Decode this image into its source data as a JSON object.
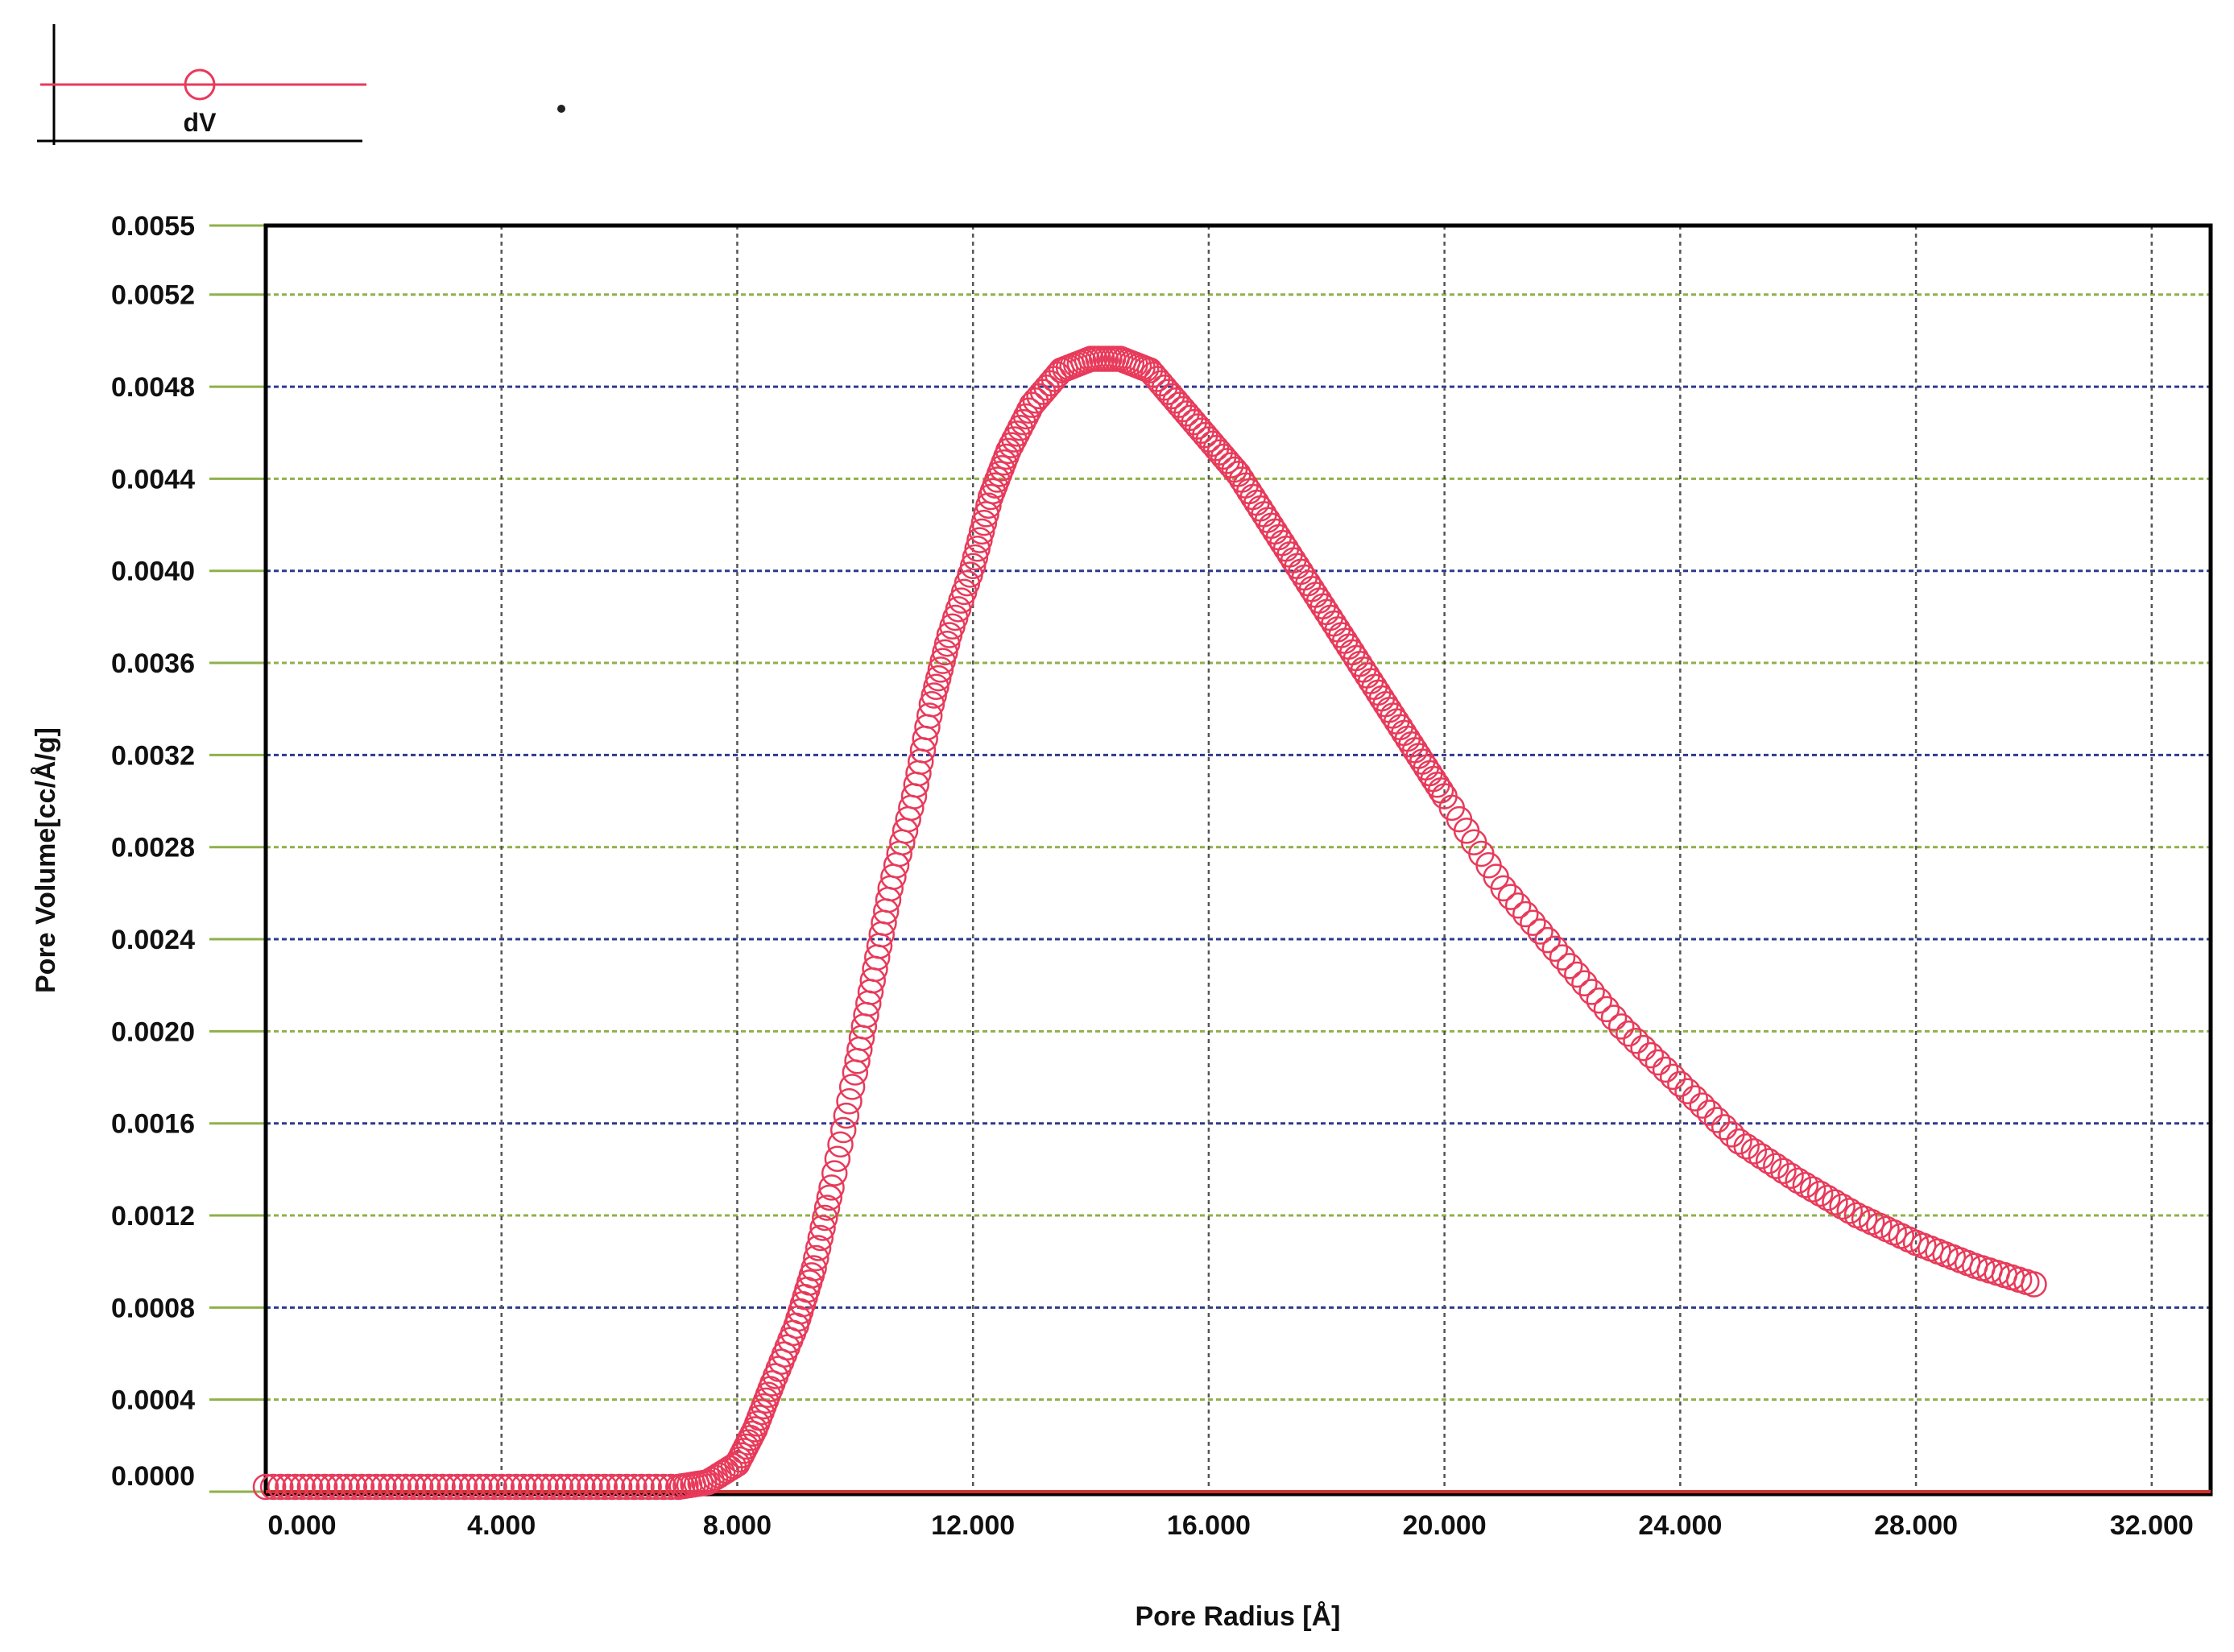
{
  "legend": {
    "series_label": "dV"
  },
  "colors": {
    "marker": "#e83a5a",
    "grid_h": "#2d3a8c",
    "grid_h_alt": "#8fb04a",
    "grid_v": "#555555",
    "frame": "#000000",
    "baseline": "#d0302c"
  },
  "chart_data": {
    "type": "scatter",
    "xlabel": "Pore Radius [Å]",
    "ylabel": "Pore Volume[cc/Å/g]",
    "xlim": [
      0,
      33
    ],
    "ylim": [
      0,
      0.0055
    ],
    "x_ticks": [
      "0.000",
      "4.000",
      "8.000",
      "12.000",
      "16.000",
      "20.000",
      "24.000",
      "28.000",
      "32.000"
    ],
    "y_ticks": [
      "0.0055",
      "0.0052",
      "0.0048",
      "0.0044",
      "0.0040",
      "0.0036",
      "0.0032",
      "0.0028",
      "0.0024",
      "0.0020",
      "0.0016",
      "0.0012",
      "0.0008",
      "0.0004",
      "0.0000"
    ],
    "grid": true,
    "marker": "open-circle",
    "series": [
      {
        "name": "dV",
        "x": [
          0.0,
          1.0,
          2.0,
          3.0,
          4.0,
          5.0,
          6.0,
          7.0,
          7.5,
          8.0,
          8.3,
          8.6,
          9.0,
          9.3,
          9.6,
          10.0,
          10.3,
          10.6,
          11.0,
          11.3,
          11.6,
          12.0,
          12.3,
          12.6,
          13.0,
          13.5,
          14.0,
          14.5,
          15.0,
          15.5,
          16.0,
          16.5,
          17.0,
          17.5,
          18.0,
          18.5,
          19.0,
          19.5,
          20.0,
          21.0,
          22.0,
          23.0,
          24.0,
          25.0,
          26.0,
          27.0,
          28.0,
          29.0,
          30.0
        ],
        "y": [
          0.0,
          0.0,
          0.0,
          0.0,
          0.0,
          0.0,
          0.0,
          0.0,
          2e-05,
          0.0001,
          0.00025,
          0.00045,
          0.0007,
          0.00095,
          0.0013,
          0.0018,
          0.0022,
          0.0026,
          0.003,
          0.0034,
          0.0037,
          0.004,
          0.0043,
          0.0045,
          0.0047,
          0.00485,
          0.0049,
          0.0049,
          0.00485,
          0.0047,
          0.00455,
          0.0044,
          0.0042,
          0.004,
          0.0038,
          0.0036,
          0.0034,
          0.0032,
          0.003,
          0.0026,
          0.0023,
          0.002,
          0.00175,
          0.0015,
          0.00133,
          0.00118,
          0.00106,
          0.00096,
          0.00088
        ]
      }
    ]
  }
}
